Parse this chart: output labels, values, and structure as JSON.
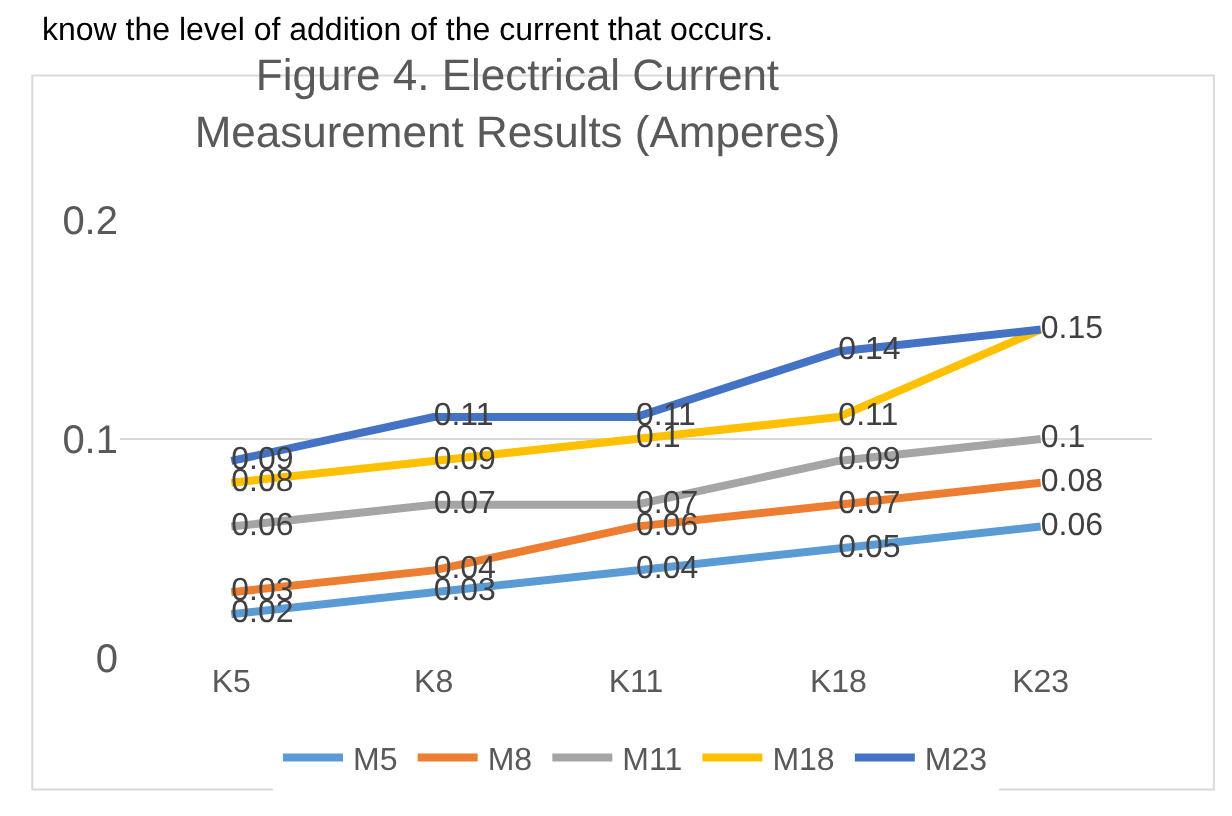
{
  "chart_data": {
    "type": "line",
    "title": "Figure 4. Electrical Current Measurement Results (Amperes)",
    "annotations": [
      "know the level of addition of the current that occurs."
    ],
    "categories": [
      "K5",
      "K8",
      "K11",
      "K18",
      "K23"
    ],
    "series": [
      {
        "name": "M5",
        "color": "#5b9bd5",
        "values": [
          0.02,
          0.03,
          0.04,
          0.05,
          0.06
        ]
      },
      {
        "name": "M8",
        "color": "#ed7d31",
        "values": [
          0.03,
          0.04,
          0.06,
          0.07,
          0.08
        ]
      },
      {
        "name": "M11",
        "color": "#a5a5a5",
        "values": [
          0.06,
          0.07,
          0.07,
          0.09,
          0.1
        ]
      },
      {
        "name": "M18",
        "color": "#ffc000",
        "values": [
          0.08,
          0.09,
          0.1,
          0.11,
          0.15
        ],
        "value_labels": [
          "0.08",
          "0.09",
          "0.1",
          "0.11",
          null
        ]
      },
      {
        "name": "M23",
        "color": "#4472c4",
        "values": [
          0.09,
          0.11,
          0.11,
          0.14,
          0.15
        ]
      }
    ],
    "ylim": [
      0,
      0.2
    ],
    "yticks": [
      0,
      0.1,
      0.2
    ],
    "grid": "y",
    "legend": "bottom",
    "data_labels": true,
    "marker": "none",
    "line_style": "solid"
  }
}
